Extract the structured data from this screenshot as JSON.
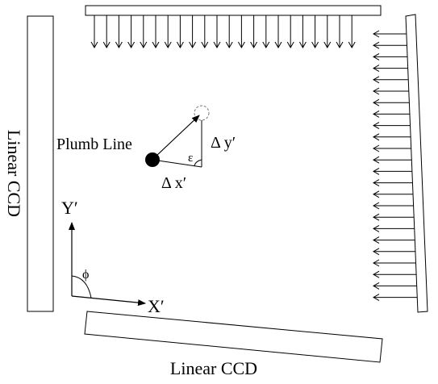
{
  "diagram": {
    "labels": {
      "ccd_left": "Linear CCD",
      "ccd_bottom": "Linear CCD",
      "plumb_line": "Plumb Line",
      "delta_x": "Δ x′",
      "delta_y": "Δ y′",
      "epsilon": "ε",
      "axis_y": "Y′",
      "axis_x": "X′",
      "phi": "ϕ"
    },
    "colors": {
      "stroke": "#000000",
      "background": "#ffffff",
      "dashed_circle": "#777777"
    },
    "icons": {
      "plumb_line_marker": "filled-circle",
      "displaced_position": "dashed-circle"
    }
  }
}
